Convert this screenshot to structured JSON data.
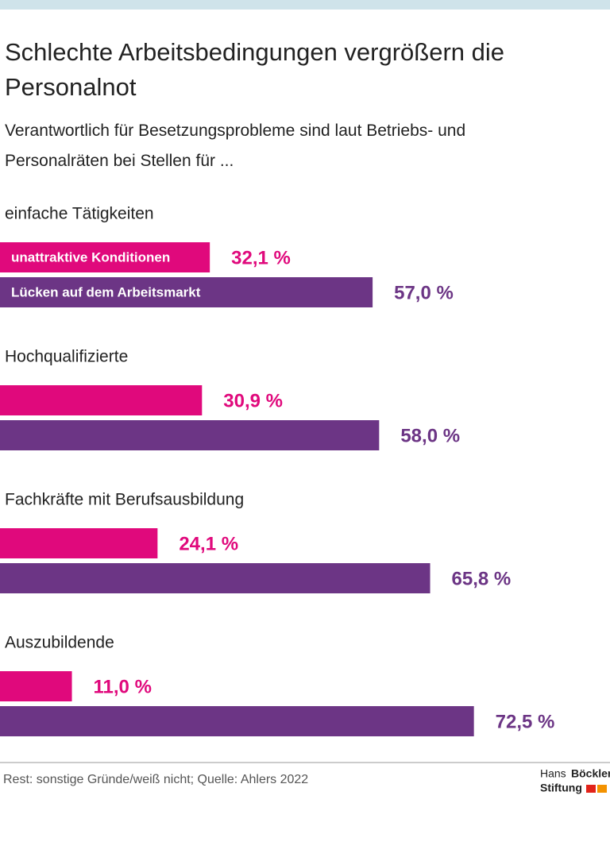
{
  "chart_data": {
    "type": "bar",
    "orientation": "horizontal",
    "title": "Schlechte Arbeitsbedingungen vergrößern die Personalnot",
    "subtitle": "Verantwortlich für Besetzungsprobleme sind laut Betriebs- und Personalräten bei Stellen für ...",
    "categories": [
      "einfache Tätigkeiten",
      "Hochqualifizierte",
      "Fachkräfte mit Berufsausbildung",
      "Auszubildende"
    ],
    "series": [
      {
        "name": "unattraktive Konditionen",
        "color": "#e0097c",
        "values": [
          32.1,
          30.9,
          24.1,
          11.0
        ],
        "value_labels": [
          "32,1 %",
          "30,9 %",
          "24,1 %",
          "11,0 %"
        ]
      },
      {
        "name": "Lücken auf dem Arbeitsmarkt",
        "color": "#6c3585",
        "values": [
          57.0,
          58.0,
          65.8,
          72.5
        ],
        "value_labels": [
          "57,0 %",
          "58,0 %",
          "65,8 %",
          "72,5 %"
        ]
      }
    ],
    "note": "Rest: sonstige Gründe/weiß nicht; Quelle: Ahlers 2022"
  },
  "logo": {
    "first": "Hans",
    "second": "Böckler",
    "third": "Stiftung"
  }
}
